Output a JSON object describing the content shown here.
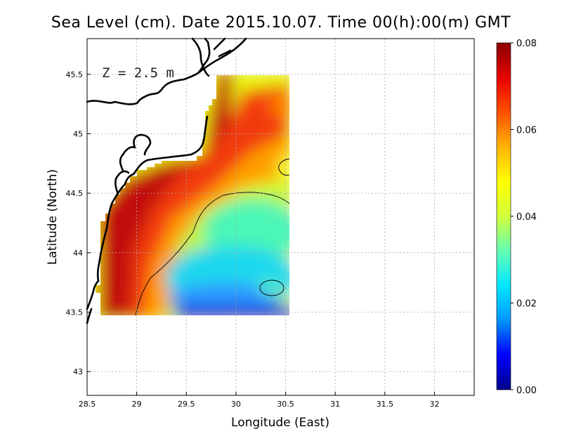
{
  "chart_data": {
    "type": "heatmap",
    "title": "Sea Level (cm). Date 2015.10.07. Time 00(h):00(m) GMT",
    "xlabel": "Longitude (East)",
    "ylabel": "Latitude (North)",
    "annotation": "Z = 2.5 m",
    "xlim": [
      28.5,
      32.4
    ],
    "ylim": [
      42.8,
      45.8
    ],
    "x_ticks": [
      "28.5",
      "29",
      "29.5",
      "30",
      "30.5",
      "31",
      "31.5",
      "32"
    ],
    "x_tick_values": [
      28.5,
      29,
      29.5,
      30,
      30.5,
      31,
      31.5,
      32
    ],
    "y_ticks": [
      "43",
      "43.5",
      "44",
      "44.5",
      "45",
      "45.5"
    ],
    "y_tick_values": [
      43,
      43.5,
      44,
      44.5,
      45,
      45.5
    ],
    "grid": true,
    "colorbar": {
      "min": 0.0,
      "max": 0.08,
      "tick_labels": [
        "0.00",
        "0.02",
        "0.04",
        "0.06",
        "0.08"
      ],
      "tick_values": [
        0.0,
        0.02,
        0.04,
        0.06,
        0.08
      ],
      "colors": [
        "#00008b",
        "#0000ff",
        "#0096ff",
        "#00e6ff",
        "#64ffb4",
        "#d2ff3c",
        "#ffff00",
        "#ffb400",
        "#ff5000",
        "#e60000",
        "#8b0000"
      ]
    },
    "colors": {
      "land": "#ffffff",
      "coastline": "#000000",
      "grid": "#aaaaaa",
      "contour": "#000000"
    }
  }
}
